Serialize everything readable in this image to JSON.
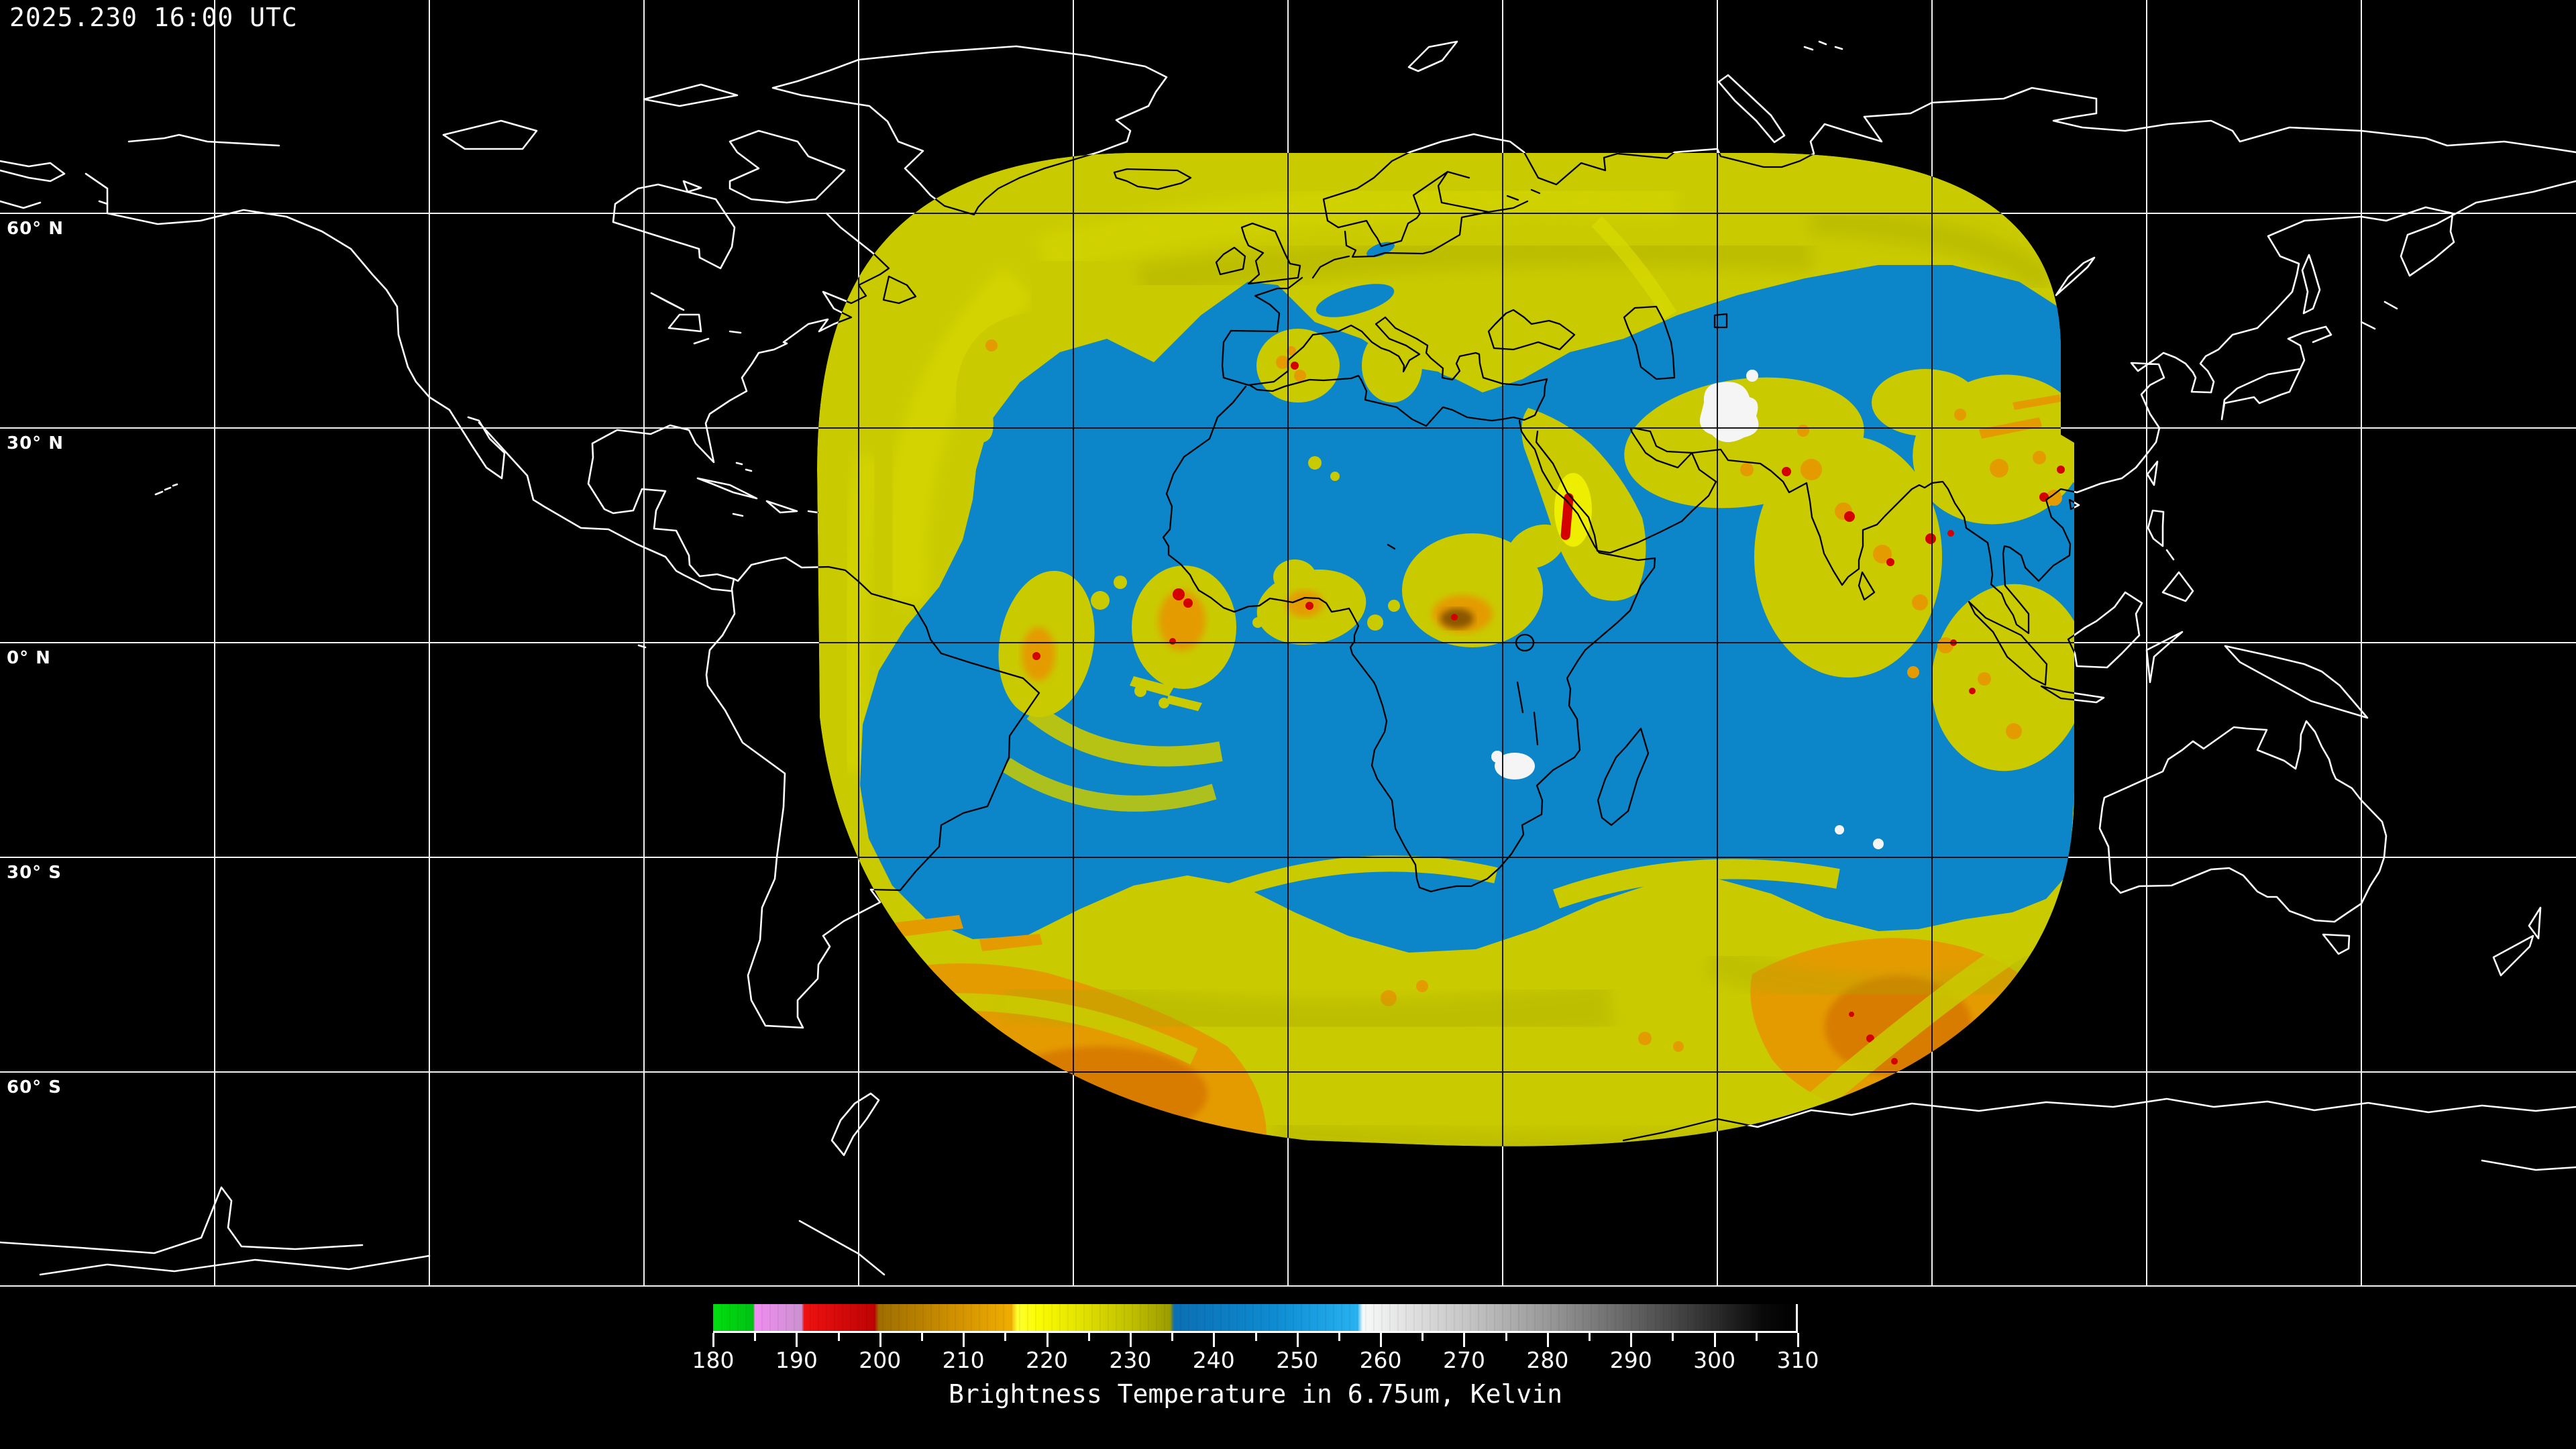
{
  "header": {
    "timestamp": "2025.230 16:00 UTC"
  },
  "map": {
    "background_color": "#000000",
    "coastline_color_outside_swath": "#ffffff",
    "coastline_color_inside_swath": "#000000",
    "graticule_spacing_degrees": 30,
    "lat_labels": [
      {
        "text": "60° N"
      },
      {
        "text": "30° N"
      },
      {
        "text": "0° N"
      },
      {
        "text": "30° S"
      },
      {
        "text": "60° S"
      }
    ],
    "swath": {
      "description_colors": {
        "cold_yellow": "#C9CA00",
        "bright_yellow": "#EDEE00",
        "olive": "#A9AA00",
        "warm_blue": "#0C86C8",
        "orange": "#E49B00",
        "deep_orange": "#D87B00",
        "convective_red": "#D40000",
        "warmest_white": "#F5F5F5"
      }
    }
  },
  "colorbar": {
    "min": 180,
    "max": 310,
    "unit": "Kelvin",
    "label": "Brightness Temperature in 6.75um, Kelvin",
    "ticks": [
      "180",
      "190",
      "200",
      "210",
      "220",
      "230",
      "240",
      "250",
      "260",
      "270",
      "280",
      "290",
      "300",
      "310"
    ],
    "minor_tick_values": [
      185,
      195,
      205,
      215,
      225,
      235,
      245,
      255,
      265,
      275,
      285,
      295,
      305
    ],
    "gradient_stops": [
      [
        0,
        "#00DF0F"
      ],
      [
        3.7,
        "#00C214"
      ],
      [
        3.85,
        "#F18CF1"
      ],
      [
        8.2,
        "#CB92D0"
      ],
      [
        8.4,
        "#EF1111"
      ],
      [
        14.9,
        "#BE0303"
      ],
      [
        15.3,
        "#9E6E00"
      ],
      [
        22,
        "#CE8F00"
      ],
      [
        27.5,
        "#F0AD00"
      ],
      [
        28.1,
        "#FFFF30"
      ],
      [
        30,
        "#FBFB00"
      ],
      [
        34,
        "#E2E200"
      ],
      [
        38.5,
        "#C1C100"
      ],
      [
        42.2,
        "#9C9C00"
      ],
      [
        42.6,
        "#0B6FB3"
      ],
      [
        52,
        "#0E8CD2"
      ],
      [
        59.5,
        "#27B2F1"
      ],
      [
        60,
        "#F7F9F9"
      ],
      [
        63.6,
        "#E4E4E4"
      ],
      [
        69.5,
        "#C6C6C6"
      ],
      [
        77,
        "#999999"
      ],
      [
        85,
        "#626262"
      ],
      [
        92.3,
        "#2E2E2E"
      ],
      [
        97,
        "#090909"
      ],
      [
        100,
        "#000000"
      ]
    ]
  }
}
